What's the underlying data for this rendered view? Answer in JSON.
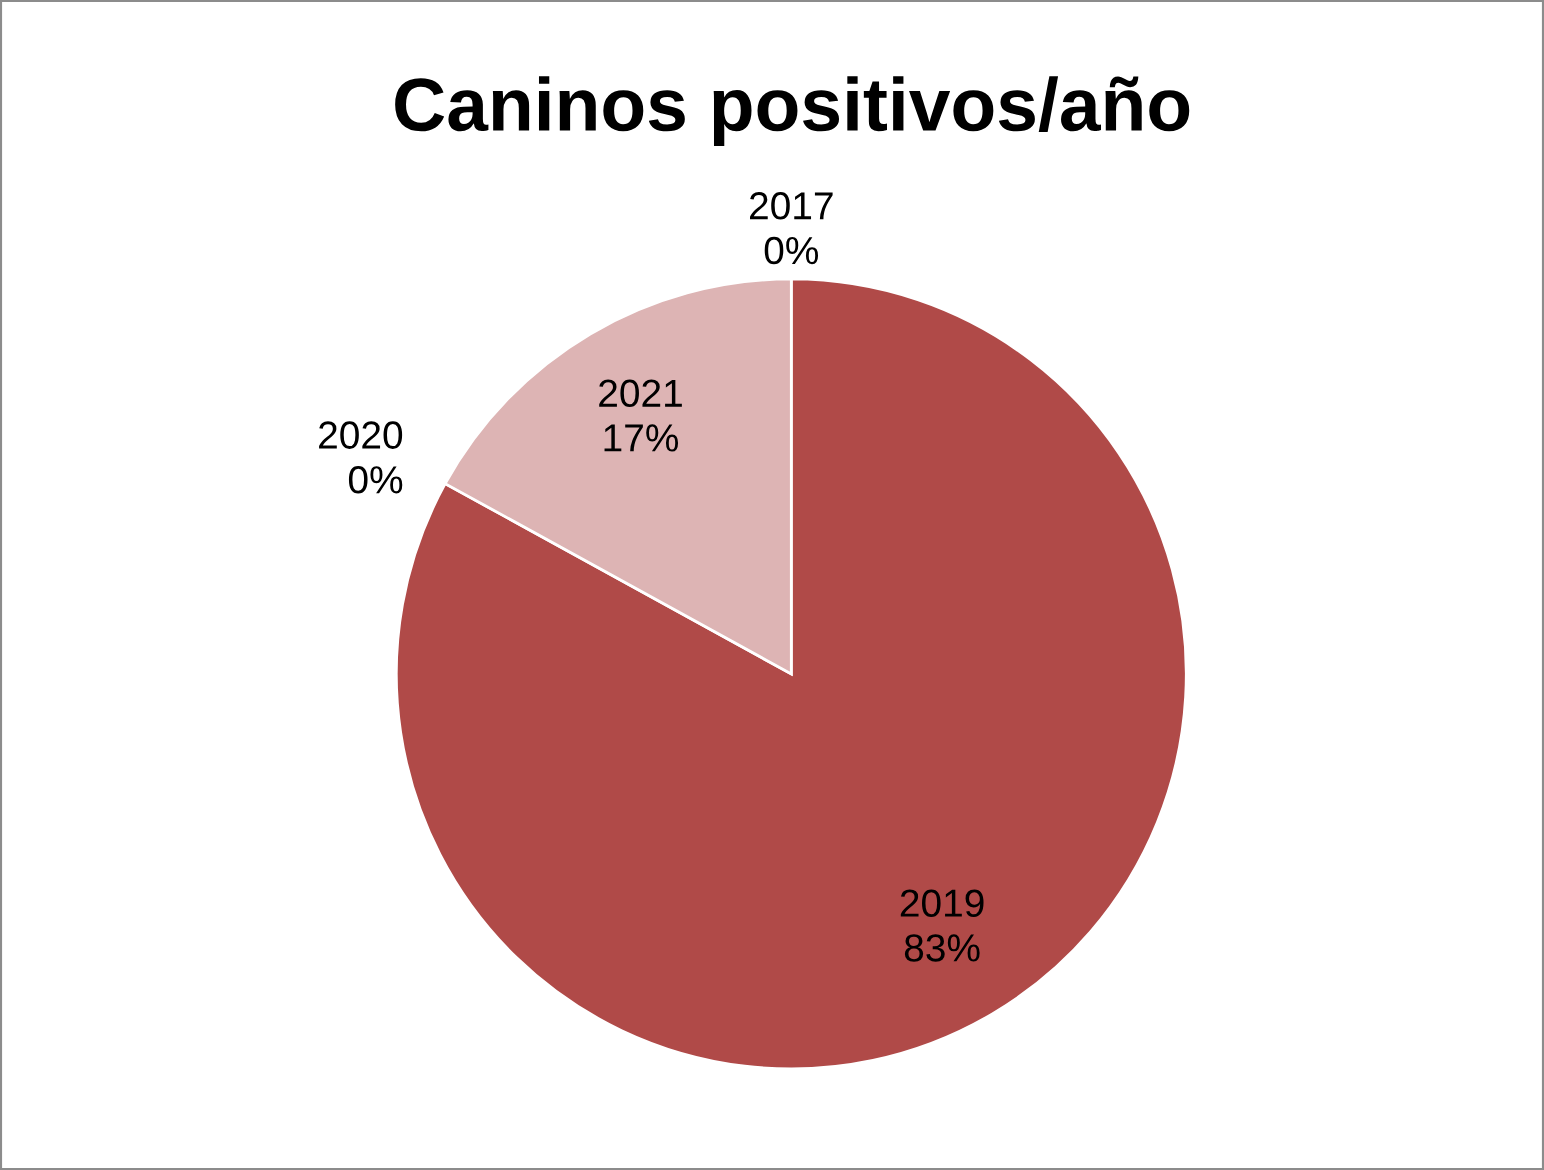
{
  "chart_data": {
    "type": "pie",
    "title": "Caninos positivos/año",
    "categories": [
      "2017",
      "2019",
      "2020",
      "2021"
    ],
    "values": [
      0,
      83,
      0,
      17
    ],
    "value_labels": [
      "0%",
      "83%",
      "0%",
      "17%"
    ],
    "colors": [
      "#4f81bd",
      "#b04a48",
      "#9bbb59",
      "#ddb4b4"
    ],
    "legend": false
  }
}
